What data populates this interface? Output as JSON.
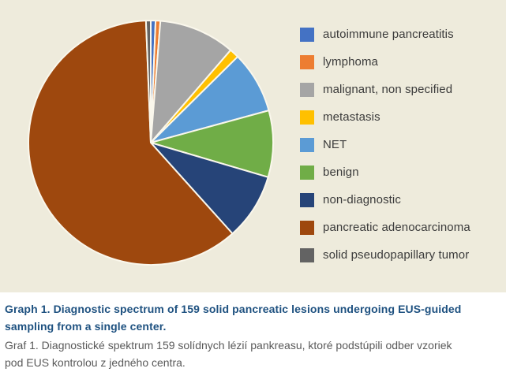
{
  "panel": {
    "background": "#EEEBDC"
  },
  "chart_data": {
    "type": "pie",
    "title": "",
    "total": 159,
    "start_angle_deg": 0,
    "direction": "clockwise",
    "legend_position": "right",
    "separator_color": "#FAF7EC",
    "slices": [
      {
        "label": "autoimmune pancreatitis",
        "value": 1,
        "color": "#4472C4"
      },
      {
        "label": "lymphoma",
        "value": 1,
        "color": "#ED7D31"
      },
      {
        "label": "malignant, non specified",
        "value": 16,
        "color": "#A5A5A5"
      },
      {
        "label": "metastasis",
        "value": 2,
        "color": "#FFC000"
      },
      {
        "label": "NET",
        "value": 13,
        "color": "#5B9BD5"
      },
      {
        "label": "benign",
        "value": 14,
        "color": "#70AD47"
      },
      {
        "label": "non-diagnostic",
        "value": 14,
        "color": "#264478"
      },
      {
        "label": "pancreatic adenocarcinoma",
        "value": 97,
        "color": "#9E480E"
      },
      {
        "label": "solid pseudopapillary tumor",
        "value": 1,
        "color": "#636363"
      }
    ]
  },
  "legend": {
    "text_color": "#3B3B3B"
  },
  "caption": {
    "title_en": [
      "Graph 1. Diagnostic spectrum of 159 solid pancreatic lesions undergoing EUS-guided",
      "sampling from a single center."
    ],
    "title_sk": [
      "Graf 1. Diagnostické spektrum 159 solídnych lézií pankreasu, ktoré podstúpili odber vzoriek",
      "pod EUS kontrolou z jedného centra."
    ],
    "title_color": "#1E5180",
    "subtitle_color": "#595959"
  }
}
